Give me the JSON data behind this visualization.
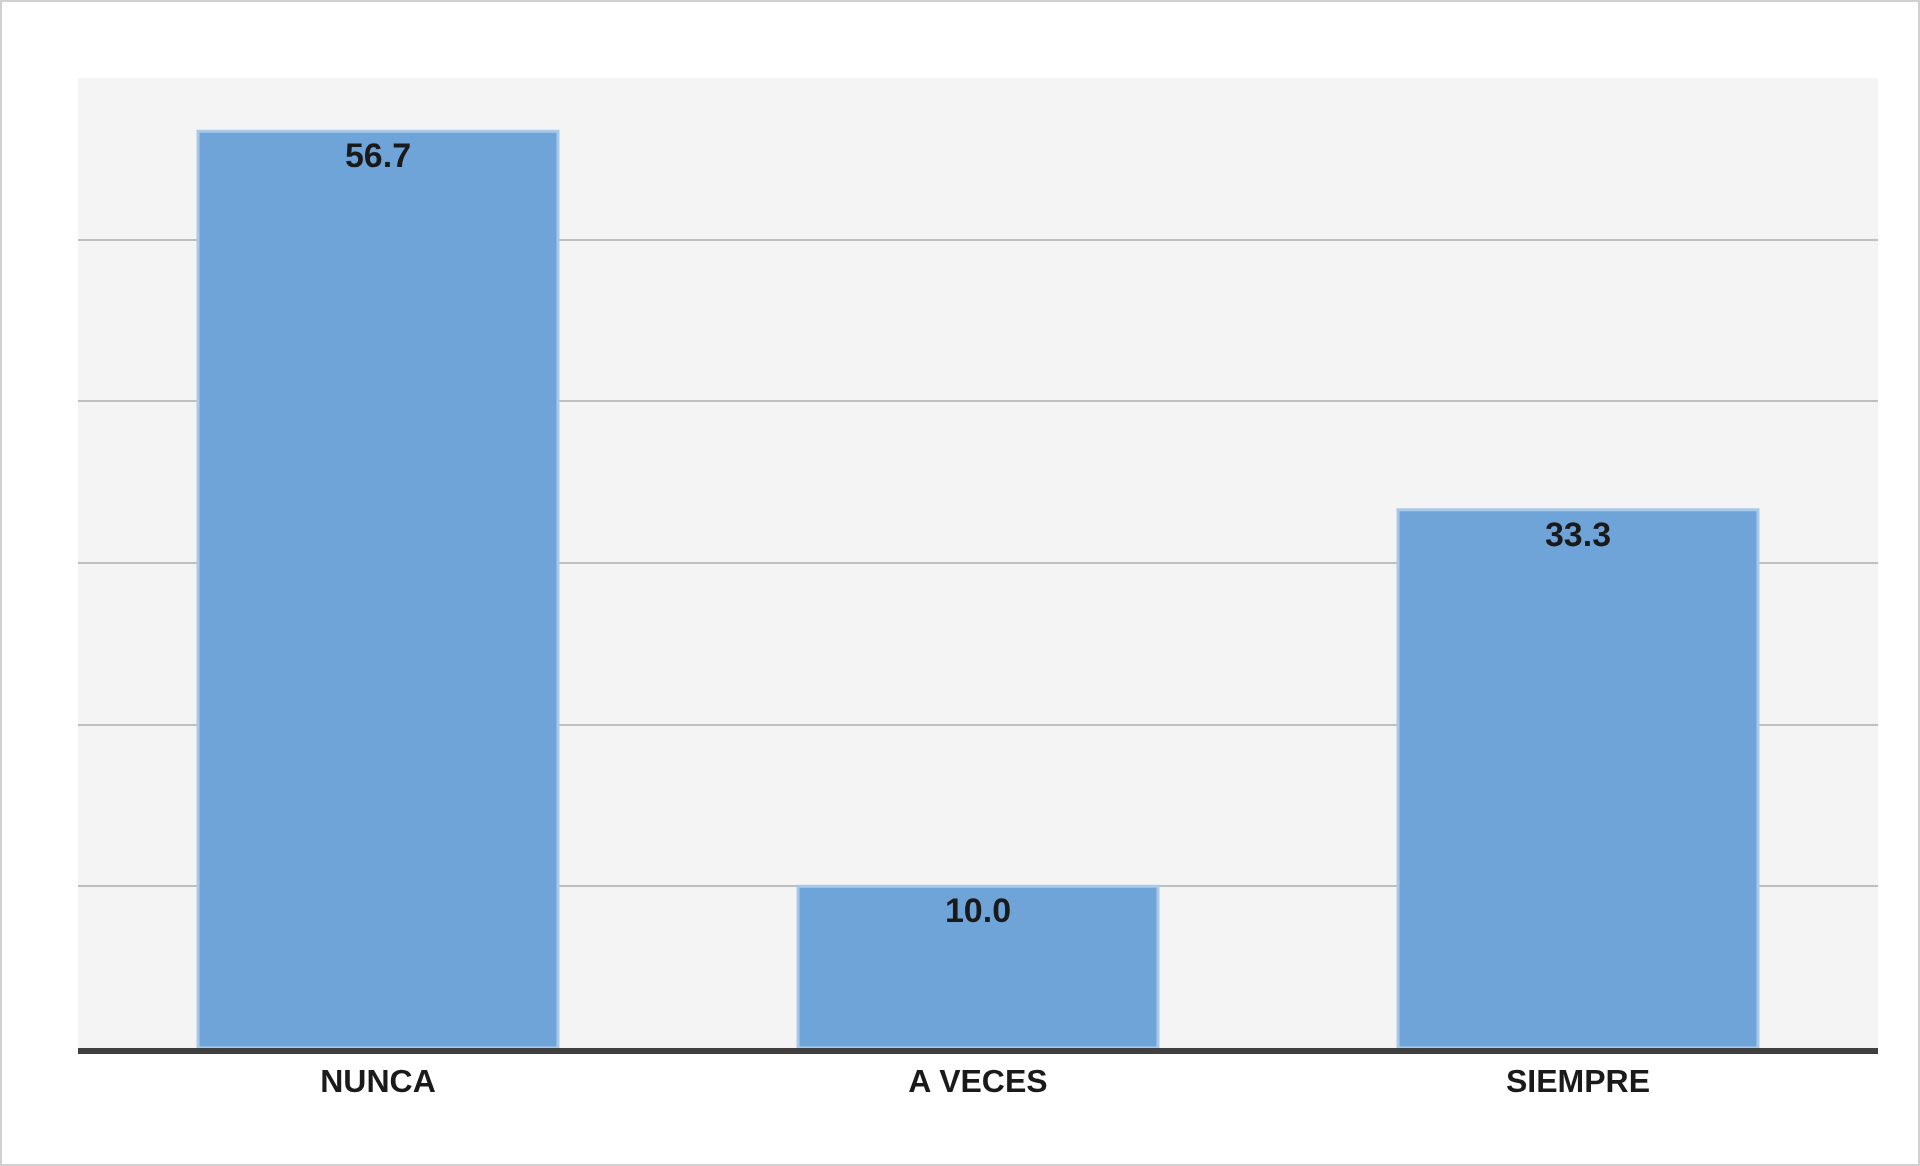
{
  "chart_data": {
    "type": "bar",
    "categories": [
      "NUNCA",
      "A VECES",
      "SIEMPRE"
    ],
    "values": [
      56.7,
      10.0,
      33.3
    ],
    "value_labels": [
      "56.7",
      "10.0",
      "33.3"
    ],
    "color": "#6fa4d8",
    "ylim": [
      0,
      60
    ],
    "yticks": [
      {
        "value": 0,
        "label": null
      },
      {
        "value": 10,
        "label": null
      },
      {
        "value": 20,
        "label": null
      },
      {
        "value": 30,
        "label": null
      },
      {
        "value": 40,
        "label": null
      },
      {
        "value": 50,
        "label": null
      },
      {
        "value": 60,
        "label": null
      }
    ],
    "grid": "y",
    "tick_labels": "x"
  }
}
